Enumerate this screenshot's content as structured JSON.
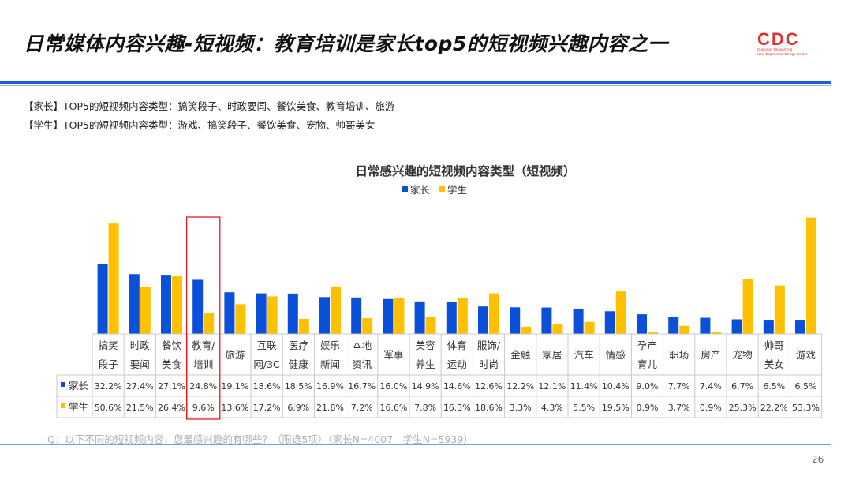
{
  "page": {
    "title": "日常媒体内容兴趣-短视频：教育培训是家长top5的短视频兴趣内容之一",
    "logo_text": "CDC",
    "logo_sub1": "Customer Research &",
    "logo_sub2": "User Experience Design Center",
    "note1": "【家长】TOP5的短视频内容类型：搞笑段子、时政要闻、餐饮美食、教育培训、旅游",
    "note2": "【学生】TOP5的短视频内容类型：游戏、搞笑段子、餐饮美食、宠物、帅哥美女",
    "footer_question": "Q：以下不同的短视频内容，您最感兴趣的有哪些？（限选5项）（家长N=4007　学生N=5939）",
    "page_number": "26",
    "colors": {
      "accent": "#1f5fd6",
      "parent": "#0a50d8",
      "student": "#ffc000",
      "highlight": "#e02020"
    }
  },
  "chart_data": {
    "type": "bar",
    "title": "日常感兴趣的短视频内容类型（短视频）",
    "categories": [
      [
        "搞笑",
        "段子"
      ],
      [
        "时政",
        "要闻"
      ],
      [
        "餐饮",
        "美食"
      ],
      [
        "教育/",
        "培训"
      ],
      [
        "旅游"
      ],
      [
        "互联",
        "网/3C"
      ],
      [
        "医疗",
        "健康"
      ],
      [
        "娱乐",
        "新闻"
      ],
      [
        "本地",
        "资讯"
      ],
      [
        "军事"
      ],
      [
        "美容",
        "养生"
      ],
      [
        "体育",
        "运动"
      ],
      [
        "服饰/",
        "时尚"
      ],
      [
        "金融"
      ],
      [
        "家居"
      ],
      [
        "汽车"
      ],
      [
        "情感"
      ],
      [
        "孕产",
        "育儿"
      ],
      [
        "职场"
      ],
      [
        "房产"
      ],
      [
        "宠物"
      ],
      [
        "帅哥",
        "美女"
      ],
      [
        "游戏"
      ]
    ],
    "series": [
      {
        "name": "家长",
        "color": "#0a50d8",
        "values": [
          32.2,
          27.4,
          27.1,
          24.8,
          19.1,
          18.6,
          18.5,
          16.9,
          16.7,
          16.0,
          14.9,
          14.6,
          12.6,
          12.2,
          12.1,
          11.4,
          10.4,
          9.0,
          7.7,
          7.4,
          6.7,
          6.5,
          6.5
        ],
        "labels": [
          "32.2%",
          "27.4%",
          "27.1%",
          "24.8%",
          "19.1%",
          "18.6%",
          "18.5%",
          "16.9%",
          "16.7%",
          "16.0%",
          "14.9%",
          "14.6%",
          "12.6%",
          "12.2%",
          "12.1%",
          "11.4%",
          "10.4%",
          "9.0%",
          "7.7%",
          "7.4%",
          "6.7%",
          "6.5%",
          "6.5%"
        ]
      },
      {
        "name": "学生",
        "color": "#ffc000",
        "values": [
          50.6,
          21.5,
          26.4,
          9.6,
          13.6,
          17.2,
          6.9,
          21.8,
          7.2,
          16.6,
          7.8,
          16.3,
          18.6,
          3.3,
          4.3,
          5.5,
          19.5,
          0.9,
          3.7,
          0.9,
          25.3,
          22.2,
          53.3
        ],
        "labels": [
          "50.6%",
          "21.5%",
          "26.4%",
          "9.6%",
          "13.6%",
          "17.2%",
          "6.9%",
          "21.8%",
          "7.2%",
          "16.6%",
          "7.8%",
          "16.3%",
          "18.6%",
          "3.3%",
          "4.3%",
          "5.5%",
          "19.5%",
          "0.9%",
          "3.7%",
          "0.9%",
          "25.3%",
          "22.2%",
          "53.3%"
        ]
      }
    ],
    "highlighted_category_index": 3,
    "legend_position": "top-center",
    "ylim": [
      0,
      55
    ],
    "grid": false
  }
}
